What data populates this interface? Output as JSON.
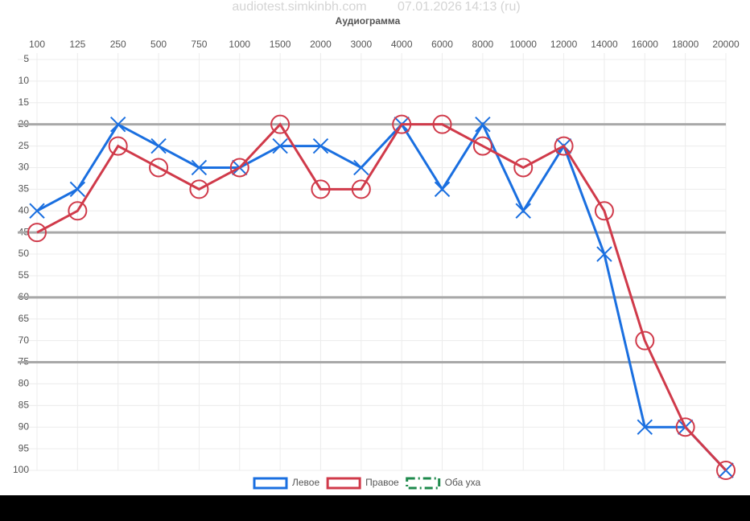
{
  "header": {
    "site": "audiotest.simkinbh.com",
    "date": "07.01.2026",
    "time": "14:13 (ru)"
  },
  "chart_data": {
    "type": "line",
    "title": "Аудиограмма",
    "categories": [
      "100",
      "125",
      "250",
      "500",
      "750",
      "1000",
      "1500",
      "2000",
      "3000",
      "4000",
      "6000",
      "8000",
      "10000",
      "12000",
      "14000",
      "16000",
      "18000",
      "20000"
    ],
    "ylim": [
      5,
      100
    ],
    "y_reversed": true,
    "yticks": [
      5,
      10,
      15,
      20,
      25,
      30,
      35,
      40,
      45,
      50,
      55,
      60,
      65,
      70,
      75,
      80,
      85,
      90,
      95,
      100
    ],
    "reference_lines": [
      20,
      45,
      60,
      75
    ],
    "grid": true,
    "legend": "bottom",
    "series": [
      {
        "name": "Левое",
        "color": "#1a6fe0",
        "marker": "cross",
        "dash": "solid",
        "values": [
          40,
          35,
          20,
          25,
          30,
          30,
          25,
          25,
          30,
          20,
          35,
          20,
          40,
          25,
          50,
          90,
          90,
          100
        ]
      },
      {
        "name": "Правое",
        "color": "#d03a4a",
        "marker": "circle",
        "dash": "solid",
        "values": [
          45,
          40,
          25,
          30,
          35,
          30,
          20,
          35,
          35,
          20,
          20,
          25,
          30,
          25,
          40,
          70,
          90,
          100
        ]
      },
      {
        "name": "Оба уха",
        "color": "#1e8a4c",
        "marker": "none",
        "dash": "dashdot",
        "values": [
          null,
          null,
          null,
          null,
          null,
          null,
          null,
          null,
          null,
          null,
          null,
          null,
          null,
          null,
          null,
          null,
          null,
          null
        ]
      }
    ]
  }
}
